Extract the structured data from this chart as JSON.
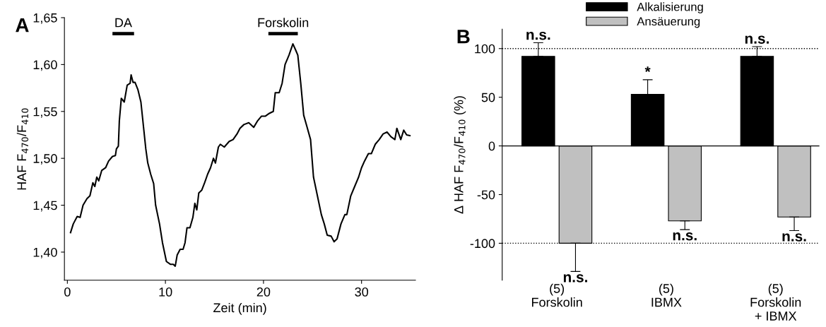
{
  "chart_data": [
    {
      "type": "line",
      "title": "A",
      "ylabel": "HAF F$_{470}$/F$_{410}$",
      "xlabel": "Zeit (min)",
      "xlim": [
        -0.3,
        35.5
      ],
      "ylim": [
        1.37,
        1.65
      ],
      "xticks": [
        0,
        10,
        20,
        30
      ],
      "yticks": [
        {
          "value": 1.4,
          "label": "1,40"
        },
        {
          "value": 1.45,
          "label": "1,45"
        },
        {
          "value": 1.5,
          "label": "1,50"
        },
        {
          "value": 1.55,
          "label": "1,55"
        },
        {
          "value": 1.6,
          "label": "1,60"
        },
        {
          "value": 1.65,
          "label": "1,65"
        }
      ],
      "grid": false,
      "legend": false,
      "series": [
        {
          "name": "DA",
          "color": "#000000",
          "x": [
            4.6,
            6.8
          ],
          "values": [
            1.633,
            1.633
          ]
        },
        {
          "name": "Forskolin",
          "color": "#000000",
          "x": [
            20.5,
            23.5
          ],
          "values": [
            1.633,
            1.633
          ]
        },
        {
          "color": "#000000",
          "x": [
            0.3,
            0.6,
            1.0,
            1.3,
            1.6,
            2.0,
            2.3,
            2.6,
            2.8,
            3.0,
            3.2,
            3.5,
            3.9,
            4.2,
            4.6,
            4.9,
            5.0,
            5.2,
            5.3,
            5.5,
            5.8,
            6.1,
            6.4,
            6.5,
            6.7,
            6.9,
            7.2,
            7.5,
            7.8,
            8.0,
            8.2,
            8.5,
            8.8,
            9.0,
            9.4,
            9.7,
            10.1,
            10.5,
            10.8,
            11.0,
            11.2,
            11.5,
            11.8,
            12.0,
            12.2,
            12.5,
            12.8,
            13.0,
            13.2,
            13.4,
            13.7,
            14.0,
            14.3,
            14.6,
            14.9,
            15.1,
            15.4,
            15.6,
            16.0,
            16.5,
            16.9,
            17.3,
            17.6,
            18.0,
            18.5,
            19.0,
            19.4,
            19.8,
            20.2,
            20.6,
            21.0,
            21.2,
            21.6,
            21.9,
            22.2,
            22.6,
            23.0,
            23.3,
            23.5,
            23.8,
            24.1,
            24.4,
            24.8,
            25.1,
            25.5,
            25.9,
            26.2,
            26.5,
            26.9,
            27.2,
            27.5,
            27.9,
            28.3,
            28.5,
            28.9,
            29.3,
            29.7,
            30.0,
            30.3,
            30.7,
            31.0,
            31.4,
            31.8,
            32.2,
            32.6,
            33.0,
            33.4,
            33.6,
            34.0,
            34.3,
            34.6,
            35.0
          ],
          "values": [
            1.42,
            1.43,
            1.438,
            1.437,
            1.45,
            1.457,
            1.46,
            1.474,
            1.47,
            1.48,
            1.476,
            1.487,
            1.49,
            1.497,
            1.502,
            1.503,
            1.51,
            1.513,
            1.54,
            1.564,
            1.56,
            1.578,
            1.58,
            1.589,
            1.581,
            1.581,
            1.573,
            1.56,
            1.53,
            1.51,
            1.495,
            1.483,
            1.473,
            1.45,
            1.43,
            1.41,
            1.39,
            1.387,
            1.387,
            1.385,
            1.397,
            1.403,
            1.403,
            1.41,
            1.426,
            1.426,
            1.437,
            1.452,
            1.445,
            1.463,
            1.466,
            1.474,
            1.483,
            1.49,
            1.5,
            1.495,
            1.512,
            1.515,
            1.512,
            1.518,
            1.52,
            1.526,
            1.532,
            1.536,
            1.538,
            1.533,
            1.54,
            1.545,
            1.545,
            1.548,
            1.55,
            1.57,
            1.57,
            1.58,
            1.6,
            1.61,
            1.622,
            1.615,
            1.61,
            1.58,
            1.546,
            1.535,
            1.52,
            1.48,
            1.46,
            1.44,
            1.43,
            1.418,
            1.417,
            1.411,
            1.414,
            1.43,
            1.44,
            1.44,
            1.46,
            1.47,
            1.48,
            1.49,
            1.497,
            1.505,
            1.505,
            1.515,
            1.52,
            1.526,
            1.528,
            1.523,
            1.52,
            1.532,
            1.52,
            1.53,
            1.525,
            1.524
          ]
        }
      ]
    },
    {
      "type": "bar",
      "title": "B",
      "ylabel": "Δ HAF F$_{470}$/F$_{410}$ (%)",
      "categories": [
        "(5)\nForskolin",
        "(5)\nIBMX",
        "(5)\nForskolin\n+ IBMX"
      ],
      "ylim": [
        -138,
        120
      ],
      "yticks": [
        -100,
        -50,
        0,
        50,
        100
      ],
      "grid": false,
      "legend": "top",
      "ref_lines": [
        {
          "axis": "y",
          "value": 100,
          "color": "#000000",
          "line_style": "dotted"
        },
        {
          "axis": "y",
          "value": -100,
          "color": "#000000",
          "line_style": "dotted"
        }
      ],
      "series": [
        {
          "name": "Alkalisierung",
          "color": "#000000",
          "values": [
            92,
            53,
            92
          ],
          "errors": [
            [
              92,
              106
            ],
            [
              53,
              68
            ],
            [
              92,
              102
            ]
          ]
        },
        {
          "name": "Ansäuerung",
          "color": "#c0c0c0",
          "values": [
            -100,
            -77,
            -73
          ],
          "errors": [
            [
              -129,
              -100
            ],
            [
              -86,
              -77
            ],
            [
              -87,
              -73
            ]
          ]
        }
      ],
      "annotations": [
        "n.s.",
        "*",
        "n.s.",
        "n.s.",
        "n.s.",
        "n.s."
      ]
    }
  ]
}
